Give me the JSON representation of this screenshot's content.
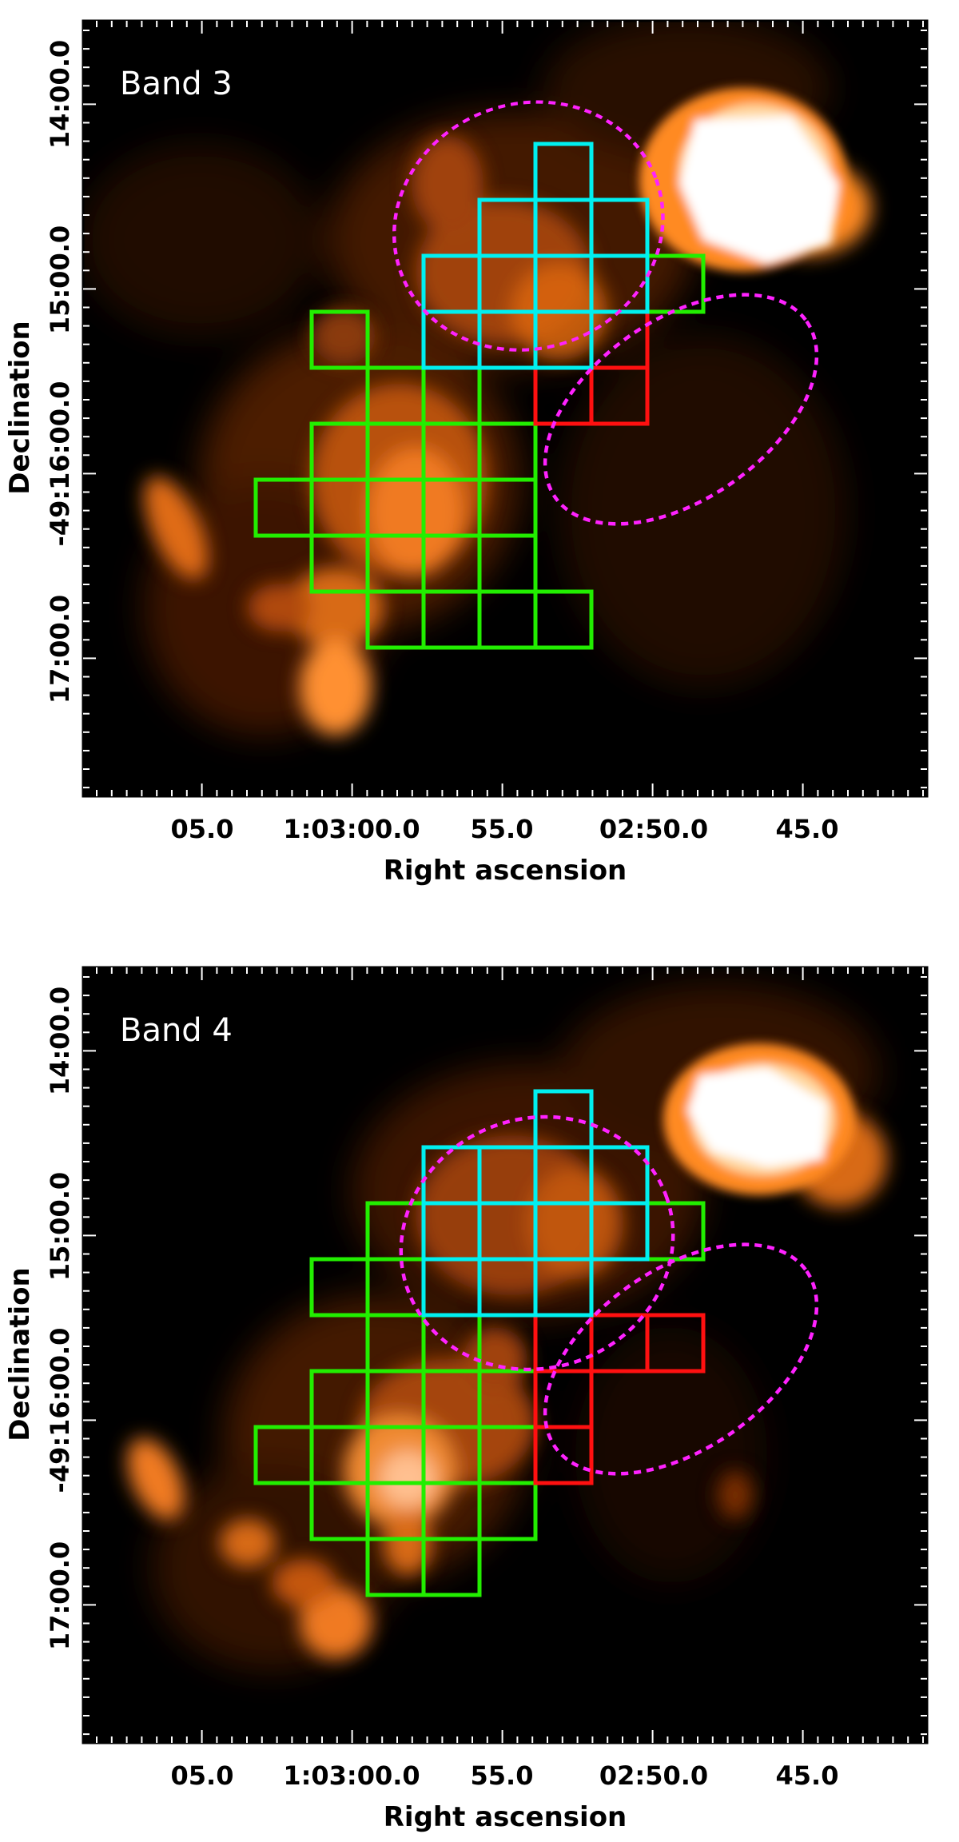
{
  "panels": [
    {
      "band_label": "Band 3",
      "x_ticks": [
        "05.0",
        "1:03:00.0",
        "55.0",
        "02:50.0",
        "45.0"
      ],
      "y_ticks": [
        "14:00.0",
        "15:00.0",
        "-49:16:00.0",
        "17:00.0"
      ],
      "x_title": "Right ascension",
      "y_title": "Declination"
    },
    {
      "band_label": "Band 4",
      "x_ticks": [
        "05.0",
        "1:03:00.0",
        "55.0",
        "02:50.0",
        "45.0"
      ],
      "y_ticks": [
        "14:00.0",
        "15:00.0",
        "-49:16:00.0",
        "17:00.0"
      ],
      "x_title": "Right ascension",
      "y_title": "Declination"
    }
  ],
  "colors": {
    "background": "#000000",
    "emission": "#ff7a1e",
    "emission_core": "#ffffff",
    "grid_green": "#22ee00",
    "grid_cyan": "#00f0f0",
    "grid_red": "#ff1010",
    "ellipse_magenta": "#ff22ff",
    "tick_color": "#ffffff"
  },
  "ellipse_style": "dashed"
}
